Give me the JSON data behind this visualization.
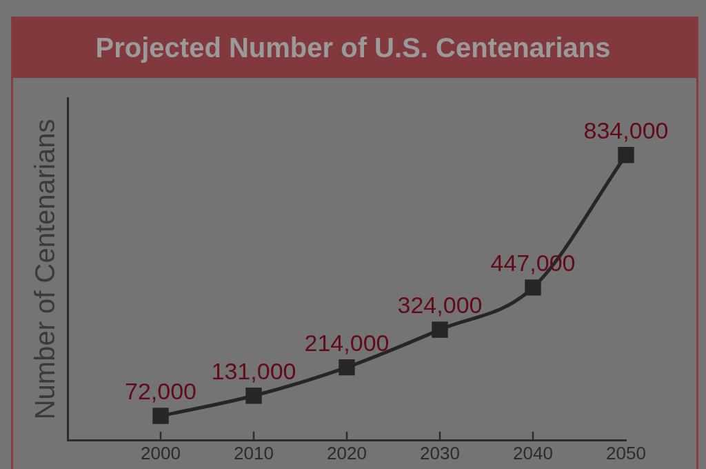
{
  "chart_data": {
    "type": "line",
    "title": "Projected Number of U.S. Centenarians",
    "ylabel": "Number of Centenarians",
    "x": [
      2000,
      2010,
      2020,
      2030,
      2040,
      2050
    ],
    "xlim": [
      1990,
      2050
    ],
    "xticks": [
      2000,
      2010,
      2020,
      2030,
      2040,
      2050
    ],
    "series": [
      {
        "color": "#262626",
        "values": [
          72000,
          131000,
          214000,
          324000,
          447000,
          834000
        ],
        "value_labels": [
          "72,000",
          "131,000",
          "214,000",
          "324,000",
          "447,000",
          "834,000"
        ]
      }
    ],
    "marker": "square",
    "line_style": "solid",
    "tick_labels": "x",
    "grid": false,
    "legend": false
  }
}
